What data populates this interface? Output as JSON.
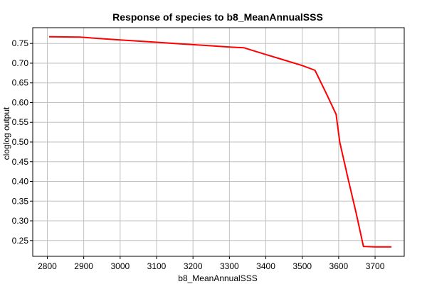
{
  "chart_data": {
    "type": "line",
    "title": "Response of species to b8_MeanAnnualSSS",
    "xlabel": "b8_MeanAnnualSSS",
    "ylabel": "cloglog output",
    "xlim": [
      2760,
      3780
    ],
    "ylim": [
      0.21,
      0.79
    ],
    "x_ticks": [
      2800,
      2900,
      3000,
      3100,
      3200,
      3300,
      3400,
      3500,
      3600,
      3700
    ],
    "y_ticks": [
      0.25,
      0.3,
      0.35,
      0.4,
      0.45,
      0.5,
      0.55,
      0.6,
      0.65,
      0.7,
      0.75
    ],
    "grid": true,
    "series": [
      {
        "color": "#ff0000",
        "x": [
          2805,
          2890,
          2950,
          3000,
          3050,
          3100,
          3150,
          3200,
          3250,
          3300,
          3340,
          3400,
          3450,
          3500,
          3535,
          3565,
          3593,
          3603,
          3625,
          3648,
          3668,
          3700,
          3745
        ],
        "y": [
          0.767,
          0.766,
          0.762,
          0.759,
          0.756,
          0.753,
          0.75,
          0.747,
          0.744,
          0.741,
          0.739,
          0.722,
          0.708,
          0.694,
          0.682,
          0.625,
          0.57,
          0.5,
          0.41,
          0.32,
          0.235,
          0.234,
          0.234
        ]
      }
    ]
  },
  "colors": {
    "background": "#ffffff",
    "grid": "#c0c0c0",
    "axis": "#000000",
    "line": "#ff0000"
  }
}
